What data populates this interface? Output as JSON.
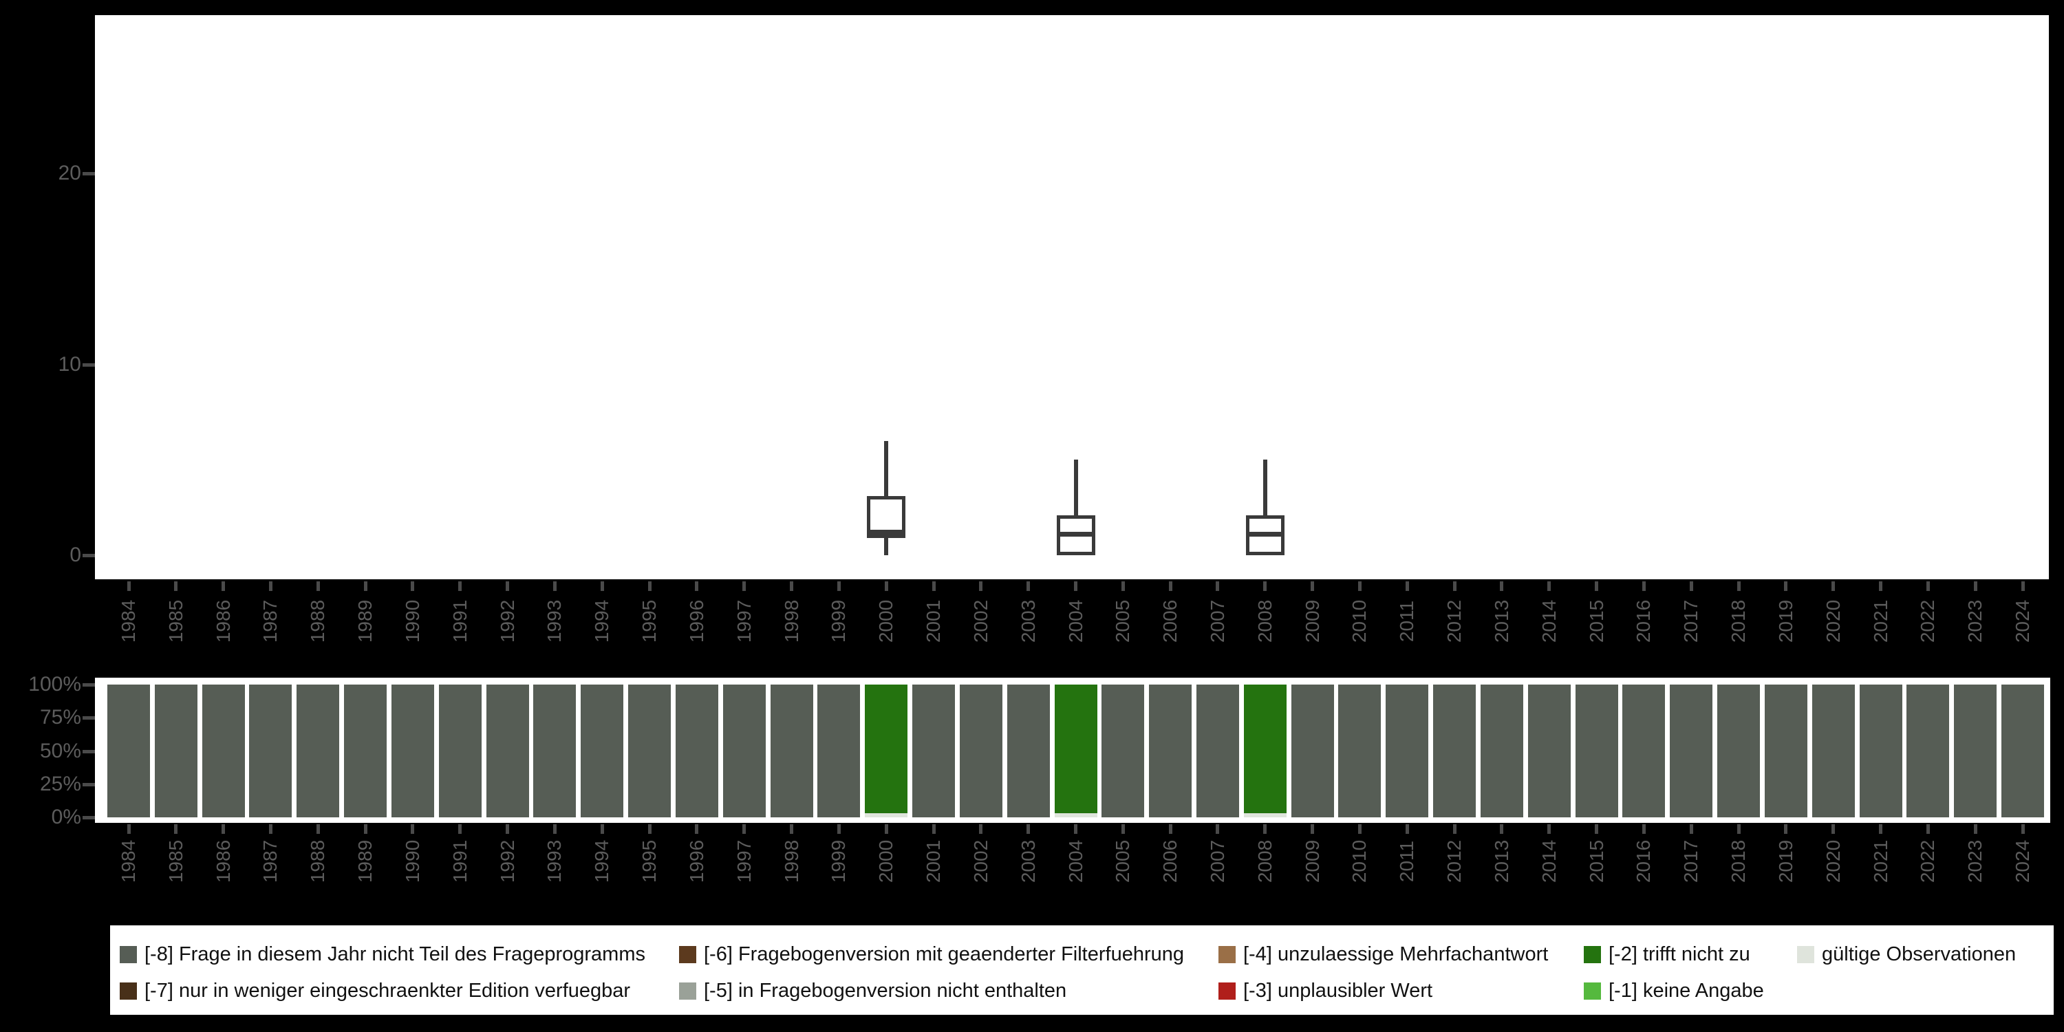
{
  "colors": {
    "background": "#000000",
    "panel_background": "#ffffff",
    "axis_text": "#5c5c5c",
    "tick_mark": "#4a4a4a",
    "boxplot_stroke": "#3a3a3a",
    "legend_text": "#111111"
  },
  "years": [
    "1984",
    "1985",
    "1986",
    "1987",
    "1988",
    "1989",
    "1990",
    "1991",
    "1992",
    "1993",
    "1994",
    "1995",
    "1996",
    "1997",
    "1998",
    "1999",
    "2000",
    "2001",
    "2002",
    "2003",
    "2004",
    "2005",
    "2006",
    "2007",
    "2008",
    "2009",
    "2010",
    "2011",
    "2012",
    "2013",
    "2014",
    "2015",
    "2016",
    "2017",
    "2018",
    "2019",
    "2020",
    "2021",
    "2022",
    "2023",
    "2024"
  ],
  "chart_data": [
    {
      "id": "value-boxplot",
      "type": "boxplot",
      "title": "",
      "xlabel": "",
      "ylabel": "",
      "yticks": [
        0,
        10,
        20
      ],
      "ylim": [
        -1.3,
        28.3
      ],
      "grid": false,
      "categories": [
        "1984",
        "1985",
        "1986",
        "1987",
        "1988",
        "1989",
        "1990",
        "1991",
        "1992",
        "1993",
        "1994",
        "1995",
        "1996",
        "1997",
        "1998",
        "1999",
        "2000",
        "2001",
        "2002",
        "2003",
        "2004",
        "2005",
        "2006",
        "2007",
        "2008",
        "2009",
        "2010",
        "2011",
        "2012",
        "2013",
        "2014",
        "2015",
        "2016",
        "2017",
        "2018",
        "2019",
        "2020",
        "2021",
        "2022",
        "2023",
        "2024"
      ],
      "boxes": [
        {
          "year": "2000",
          "min": 0,
          "q1": 0.9,
          "median": 1.2,
          "q3": 3.1,
          "max": 6.0
        },
        {
          "year": "2004",
          "min": 0,
          "q1": 0,
          "median": 1.1,
          "q3": 2.1,
          "max": 5.0
        },
        {
          "year": "2008",
          "min": 0,
          "q1": 0,
          "median": 1.1,
          "q3": 2.1,
          "max": 5.0
        }
      ]
    },
    {
      "id": "missing-percent-bars",
      "type": "bar",
      "stacked": true,
      "title": "",
      "xlabel": "",
      "ylabel": "",
      "ytick_labels": [
        "100%",
        "75%",
        "50%",
        "25%",
        "0%"
      ],
      "ylim": [
        0,
        100
      ],
      "grid": false,
      "legend_position": "bottom",
      "categories": [
        "1984",
        "1985",
        "1986",
        "1987",
        "1988",
        "1989",
        "1990",
        "1991",
        "1992",
        "1993",
        "1994",
        "1995",
        "1996",
        "1997",
        "1998",
        "1999",
        "2000",
        "2001",
        "2002",
        "2003",
        "2004",
        "2005",
        "2006",
        "2007",
        "2008",
        "2009",
        "2010",
        "2011",
        "2012",
        "2013",
        "2014",
        "2015",
        "2016",
        "2017",
        "2018",
        "2019",
        "2020",
        "2021",
        "2022",
        "2023",
        "2024"
      ],
      "series": [
        {
          "name": "[-8] Frage in diesem Jahr nicht Teil des Frageprogramms",
          "color": "#565D55",
          "values": [
            100,
            100,
            100,
            100,
            100,
            100,
            100,
            100,
            100,
            100,
            100,
            100,
            100,
            100,
            100,
            100,
            0,
            100,
            100,
            100,
            0,
            100,
            100,
            100,
            0,
            100,
            100,
            100,
            100,
            100,
            100,
            100,
            100,
            100,
            100,
            100,
            100,
            100,
            100,
            100,
            100
          ]
        },
        {
          "name": "[-2] trifft nicht zu",
          "color": "#24730F",
          "values": [
            0,
            0,
            0,
            0,
            0,
            0,
            0,
            0,
            0,
            0,
            0,
            0,
            0,
            0,
            0,
            0,
            97,
            0,
            0,
            0,
            97,
            0,
            0,
            0,
            97,
            0,
            0,
            0,
            0,
            0,
            0,
            0,
            0,
            0,
            0,
            0,
            0,
            0,
            0,
            0,
            0
          ]
        },
        {
          "name": "gültige Observationen",
          "color": "#DFE4DC",
          "values": [
            0,
            0,
            0,
            0,
            0,
            0,
            0,
            0,
            0,
            0,
            0,
            0,
            0,
            0,
            0,
            0,
            3,
            0,
            0,
            0,
            3,
            0,
            0,
            0,
            3,
            0,
            0,
            0,
            0,
            0,
            0,
            0,
            0,
            0,
            0,
            0,
            0,
            0,
            0,
            0,
            0
          ]
        }
      ]
    }
  ],
  "legend": {
    "rows": [
      [
        {
          "label": "[-8] Frage in diesem Jahr nicht Teil des Frageprogramms",
          "color": "#565D55"
        },
        {
          "label": "[-6] Fragebogenversion mit geaenderter Filterfuehrung",
          "color": "#5C3A1E"
        },
        {
          "label": "[-4] unzulaessige Mehrfachantwort",
          "color": "#9A6F47"
        },
        {
          "label": "[-2] trifft nicht zu",
          "color": "#24730F"
        },
        {
          "label": "gültige Observationen",
          "color": "#DFE4DC"
        }
      ],
      [
        {
          "label": "[-7] nur in weniger eingeschraenkter Edition verfuegbar",
          "color": "#483019"
        },
        {
          "label": "[-5] in Fragebogenversion nicht enthalten",
          "color": "#9AA198"
        },
        {
          "label": "[-3] unplausibler Wert",
          "color": "#B01F1B"
        },
        {
          "label": "[-1] keine Angabe",
          "color": "#55B93E"
        }
      ]
    ]
  }
}
